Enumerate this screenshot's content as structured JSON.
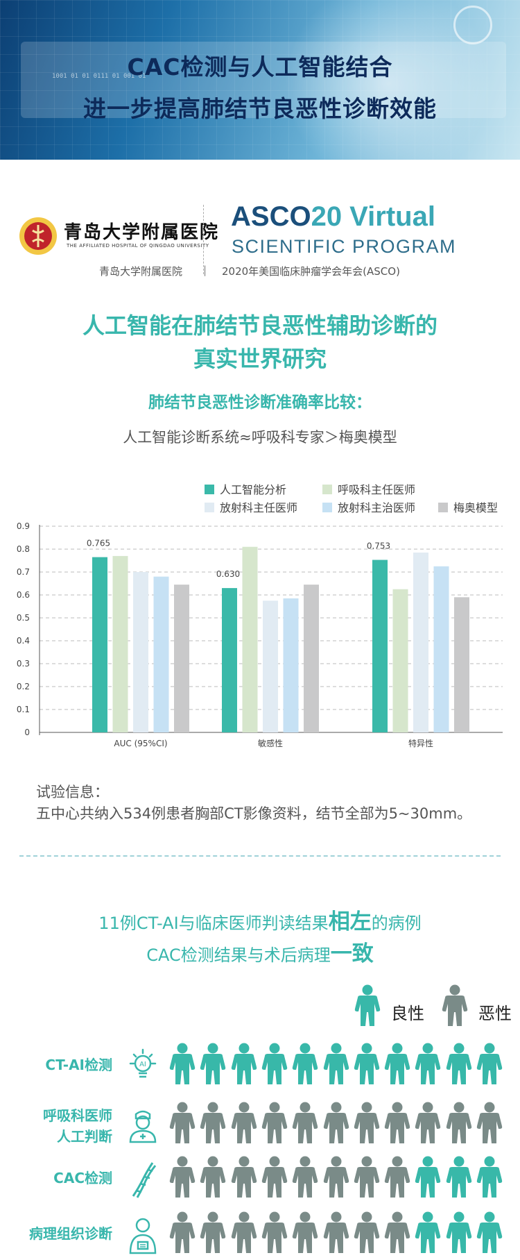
{
  "banner": {
    "title_line1": "CAC检测与人工智能结合",
    "title_line2": "进一步提高肺结节良恶性诊断效能",
    "binary_text": "1001 01 01 0111 01 001 01"
  },
  "logos": {
    "hospital_cn": "青岛大学附属医院",
    "hospital_en": "THE AFFILIATED HOSPITAL OF QINGDAO UNIVERSITY",
    "asco_main": "ASCO",
    "asco_year": "20 Virtual",
    "asco_sub": "SCIENTIFIC PROGRAM",
    "caption_left": "青岛大学附属医院",
    "caption_sep": "|",
    "caption_right": "2020年美国临床肿瘤学会年会(ASCO)"
  },
  "study": {
    "title_line1": "人工智能在肺结节良恶性辅助诊断的",
    "title_line2": "真实世界研究",
    "subtitle": "肺结节良恶性诊断准确率比较：",
    "comparison": "人工智能诊断系统≈呼吸科专家＞梅奥模型"
  },
  "chart_data": {
    "type": "bar",
    "categories": [
      "AUC (95%CI)",
      "敏感性",
      "特异性"
    ],
    "series": [
      {
        "name": "人工智能分析",
        "color": "#3ab9a9",
        "values": [
          0.765,
          0.63,
          0.753
        ]
      },
      {
        "name": "呼吸科主任医师",
        "color": "#d6e6cc",
        "values": [
          0.77,
          0.81,
          0.625
        ]
      },
      {
        "name": "放射科主任医师",
        "color": "#e1ebf3",
        "values": [
          0.7,
          0.575,
          0.785
        ]
      },
      {
        "name": "放射科主治医师",
        "color": "#c6e1f4",
        "values": [
          0.68,
          0.585,
          0.725
        ]
      },
      {
        "name": "梅奥模型",
        "color": "#c9c9ca",
        "values": [
          0.645,
          0.645,
          0.59
        ]
      }
    ],
    "data_labels": {
      "series_index": 0,
      "values": [
        "0.765",
        "0.630",
        "0.753"
      ]
    },
    "ylim": [
      0,
      0.9
    ],
    "yticks": [
      "0",
      "0.1",
      "0.2",
      "0.3",
      "0.4",
      "0.5",
      "0.6",
      "0.7",
      "0.8",
      "0.9"
    ],
    "grid": "dashed horizontal",
    "legend": "top-right"
  },
  "trial": {
    "heading": "试验信息：",
    "text": "五中心共纳入534例患者胸部CT影像资料，结节全部为5~30mm。"
  },
  "comparison": {
    "line1_pre": "11例CT-AI与临床医师判读结果",
    "line1_em": "相左",
    "line1_post": "的病例",
    "line2_pre": "CAC检测结果与术后病理",
    "line2_em": "一致",
    "legend_benign": "良性",
    "legend_malignant": "恶性",
    "benign_color": "#38b8a9",
    "malignant_color": "#7a8b88",
    "rows": [
      {
        "label_lines": [
          "CT-AI检测"
        ],
        "icon": "ai-bulb-icon",
        "cases": [
          "B",
          "B",
          "B",
          "B",
          "B",
          "B",
          "B",
          "B",
          "B",
          "B",
          "B"
        ]
      },
      {
        "label_lines": [
          "呼吸科医师",
          "人工判断"
        ],
        "icon": "doctor-icon",
        "cases": [
          "M",
          "M",
          "M",
          "M",
          "M",
          "M",
          "M",
          "M",
          "M",
          "M",
          "M"
        ]
      },
      {
        "label_lines": [
          "CAC检测"
        ],
        "icon": "dna-icon",
        "cases": [
          "M",
          "M",
          "M",
          "M",
          "M",
          "M",
          "M",
          "M",
          "B",
          "B",
          "B"
        ]
      },
      {
        "label_lines": [
          "病理组织诊断"
        ],
        "icon": "pathologist-icon",
        "cases": [
          "M",
          "M",
          "M",
          "M",
          "M",
          "M",
          "M",
          "M",
          "B",
          "B",
          "B"
        ]
      }
    ]
  }
}
